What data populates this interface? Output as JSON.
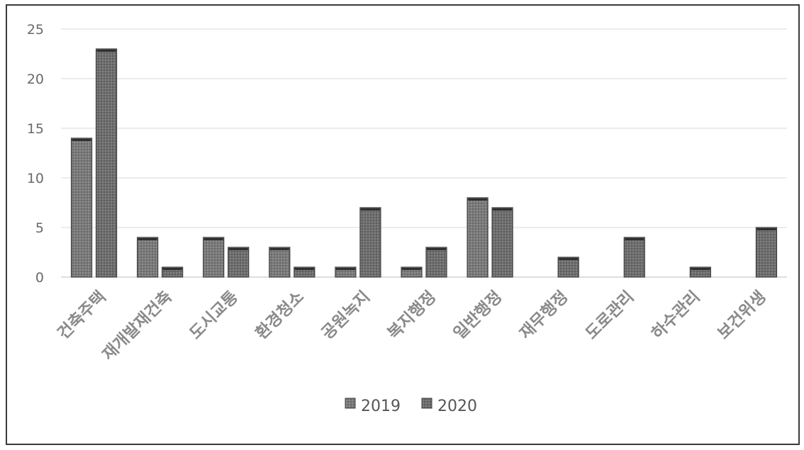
{
  "chart_data": {
    "type": "bar",
    "title": "",
    "xlabel": "",
    "ylabel": "",
    "ylim": [
      0,
      25
    ],
    "yticks": [
      0,
      5,
      10,
      15,
      20,
      25
    ],
    "grid": true,
    "legend_position": "bottom",
    "categories": [
      "건축주택",
      "재개발재건축",
      "도시교통",
      "환경청소",
      "공원녹지",
      "복지행정",
      "일반행정",
      "재무행정",
      "도로관리",
      "하수관리",
      "보건위생"
    ],
    "series": [
      {
        "name": "2019",
        "values": [
          14,
          4,
          4,
          3,
          1,
          1,
          8,
          0,
          0,
          0,
          0
        ],
        "color": "#7a7a7a"
      },
      {
        "name": "2020",
        "values": [
          23,
          1,
          3,
          1,
          7,
          3,
          7,
          2,
          4,
          1,
          5
        ],
        "color": "#6e6e6e"
      }
    ]
  }
}
